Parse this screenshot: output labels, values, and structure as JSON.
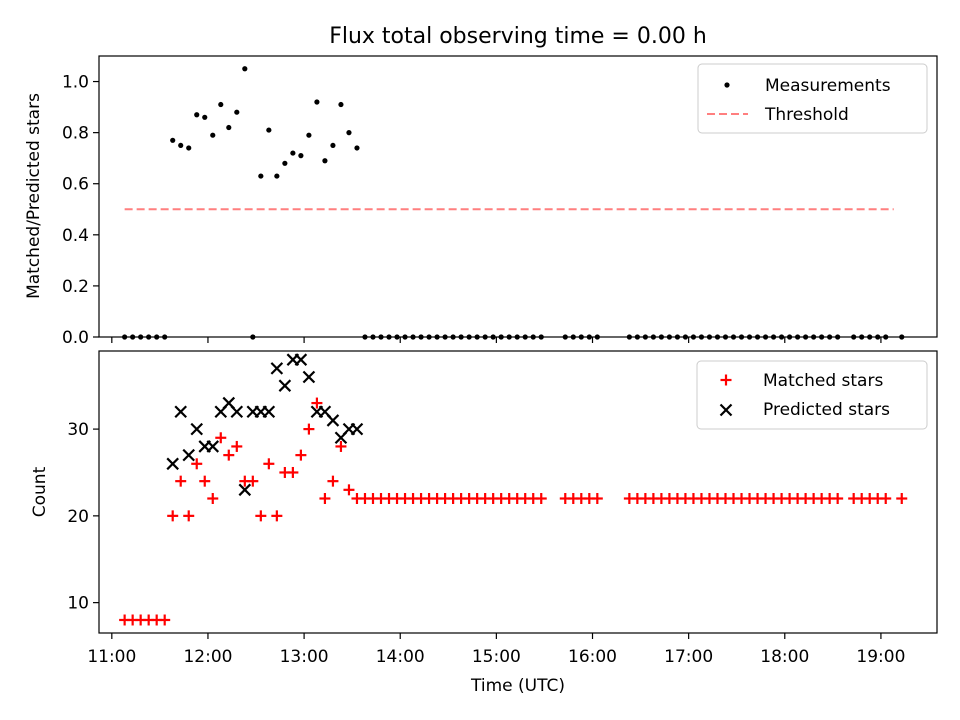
{
  "title": "Flux total observing time = 0.00 h",
  "xlabel": "Time (UTC)",
  "x_ticks": [
    "11:00",
    "12:00",
    "13:00",
    "14:00",
    "15:00",
    "16:00",
    "17:00",
    "18:00",
    "19:00"
  ],
  "colors": {
    "matched": "#ff0000",
    "predicted": "#000000",
    "measurement": "#000000",
    "threshold": "#ff7f7f"
  },
  "chart_data": [
    {
      "type": "scatter",
      "ylabel": "Matched/Predicted stars",
      "xlim": [
        "10:52",
        "19:35"
      ],
      "ylim": [
        0,
        1.1
      ],
      "y_ticks": [
        "0.0",
        "0.2",
        "0.4",
        "0.6",
        "0.8",
        "1.0"
      ],
      "legend_position": "top-right",
      "series": [
        {
          "name": "Measurements",
          "style": "dots",
          "x": [
            "11:08",
            "11:13",
            "11:18",
            "11:23",
            "11:28",
            "11:33",
            "11:38",
            "11:43",
            "11:48",
            "11:53",
            "11:58",
            "12:03",
            "12:08",
            "12:13",
            "12:18",
            "12:23",
            "12:28",
            "12:33",
            "12:38",
            "12:43",
            "12:48",
            "12:53",
            "12:58",
            "13:03",
            "13:08",
            "13:13",
            "13:18",
            "13:23",
            "13:28",
            "13:33",
            "13:38",
            "13:43",
            "13:48",
            "13:53",
            "13:58",
            "14:03",
            "14:08",
            "14:13",
            "14:18",
            "14:23",
            "14:28",
            "14:33",
            "14:38",
            "14:43",
            "14:48",
            "14:53",
            "14:58",
            "15:03",
            "15:08",
            "15:13",
            "15:18",
            "15:23",
            "15:28",
            "15:43",
            "15:48",
            "15:53",
            "15:58",
            "16:03",
            "16:23",
            "16:28",
            "16:33",
            "16:38",
            "16:43",
            "16:48",
            "16:53",
            "16:58",
            "17:03",
            "17:08",
            "17:13",
            "17:18",
            "17:23",
            "17:28",
            "17:33",
            "17:38",
            "17:43",
            "17:48",
            "17:53",
            "17:58",
            "18:03",
            "18:08",
            "18:13",
            "18:18",
            "18:23",
            "18:28",
            "18:33",
            "18:43",
            "18:48",
            "18:53",
            "18:58",
            "19:03",
            "19:13"
          ],
          "y": [
            0,
            0,
            0,
            0,
            0,
            0,
            0.77,
            0.75,
            0.74,
            0.87,
            0.86,
            0.79,
            0.91,
            0.82,
            0.88,
            1.05,
            0,
            0.63,
            0.81,
            0.63,
            0.68,
            0.72,
            0.71,
            0.79,
            0.92,
            0.69,
            0.75,
            0.91,
            0.8,
            0.74,
            0,
            0,
            0,
            0,
            0,
            0,
            0,
            0,
            0,
            0,
            0,
            0,
            0,
            0,
            0,
            0,
            0,
            0,
            0,
            0,
            0,
            0,
            0,
            0,
            0,
            0,
            0,
            0,
            0,
            0,
            0,
            0,
            0,
            0,
            0,
            0,
            0,
            0,
            0,
            0,
            0,
            0,
            0,
            0,
            0,
            0,
            0,
            0,
            0,
            0,
            0,
            0,
            0,
            0,
            0,
            0,
            0,
            0,
            0,
            0,
            0
          ]
        },
        {
          "name": "Threshold",
          "style": "dashed-line",
          "x": [
            "11:08",
            "19:08"
          ],
          "y": [
            0.5,
            0.5
          ]
        }
      ]
    },
    {
      "type": "scatter",
      "ylabel": "Count",
      "xlim": [
        "10:52",
        "19:35"
      ],
      "ylim": [
        6.5,
        39
      ],
      "y_ticks": [
        "10",
        "20",
        "30"
      ],
      "legend_position": "top-right",
      "series": [
        {
          "name": "Matched stars",
          "style": "plus",
          "x": [
            "11:08",
            "11:13",
            "11:18",
            "11:23",
            "11:28",
            "11:33",
            "11:38",
            "11:43",
            "11:48",
            "11:53",
            "11:58",
            "12:03",
            "12:08",
            "12:13",
            "12:18",
            "12:23",
            "12:28",
            "12:33",
            "12:38",
            "12:43",
            "12:48",
            "12:53",
            "12:58",
            "13:03",
            "13:08",
            "13:13",
            "13:18",
            "13:23",
            "13:28",
            "13:33",
            "13:38",
            "13:43",
            "13:48",
            "13:53",
            "13:58",
            "14:03",
            "14:08",
            "14:13",
            "14:18",
            "14:23",
            "14:28",
            "14:33",
            "14:38",
            "14:43",
            "14:48",
            "14:53",
            "14:58",
            "15:03",
            "15:08",
            "15:13",
            "15:18",
            "15:23",
            "15:28",
            "15:43",
            "15:48",
            "15:53",
            "15:58",
            "16:03",
            "16:23",
            "16:28",
            "16:33",
            "16:38",
            "16:43",
            "16:48",
            "16:53",
            "16:58",
            "17:03",
            "17:08",
            "17:13",
            "17:18",
            "17:23",
            "17:28",
            "17:33",
            "17:38",
            "17:43",
            "17:48",
            "17:53",
            "17:58",
            "18:03",
            "18:08",
            "18:13",
            "18:18",
            "18:23",
            "18:28",
            "18:33",
            "18:43",
            "18:48",
            "18:53",
            "18:58",
            "19:03",
            "19:13"
          ],
          "y": [
            8,
            8,
            8,
            8,
            8,
            8,
            20,
            24,
            20,
            26,
            24,
            22,
            29,
            27,
            28,
            24,
            24,
            20,
            26,
            20,
            25,
            25,
            27,
            30,
            33,
            22,
            24,
            28,
            23,
            22,
            22,
            22,
            22,
            22,
            22,
            22,
            22,
            22,
            22,
            22,
            22,
            22,
            22,
            22,
            22,
            22,
            22,
            22,
            22,
            22,
            22,
            22,
            22,
            22,
            22,
            22,
            22,
            22,
            22,
            22,
            22,
            22,
            22,
            22,
            22,
            22,
            22,
            22,
            22,
            22,
            22,
            22,
            22,
            22,
            22,
            22,
            22,
            22,
            22,
            22,
            22,
            22,
            22,
            22,
            22,
            22,
            22,
            22,
            22,
            22,
            22
          ]
        },
        {
          "name": "Predicted stars",
          "style": "x",
          "x": [
            "11:38",
            "11:43",
            "11:48",
            "11:53",
            "11:58",
            "12:03",
            "12:08",
            "12:13",
            "12:18",
            "12:23",
            "12:28",
            "12:33",
            "12:38",
            "12:43",
            "12:48",
            "12:53",
            "12:58",
            "13:03",
            "13:08",
            "13:13",
            "13:18",
            "13:23",
            "13:28",
            "13:33"
          ],
          "y": [
            26,
            32,
            27,
            30,
            28,
            28,
            32,
            33,
            32,
            23,
            32,
            32,
            32,
            37,
            35,
            38,
            38,
            36,
            32,
            32,
            31,
            29,
            30,
            30
          ]
        }
      ]
    }
  ]
}
